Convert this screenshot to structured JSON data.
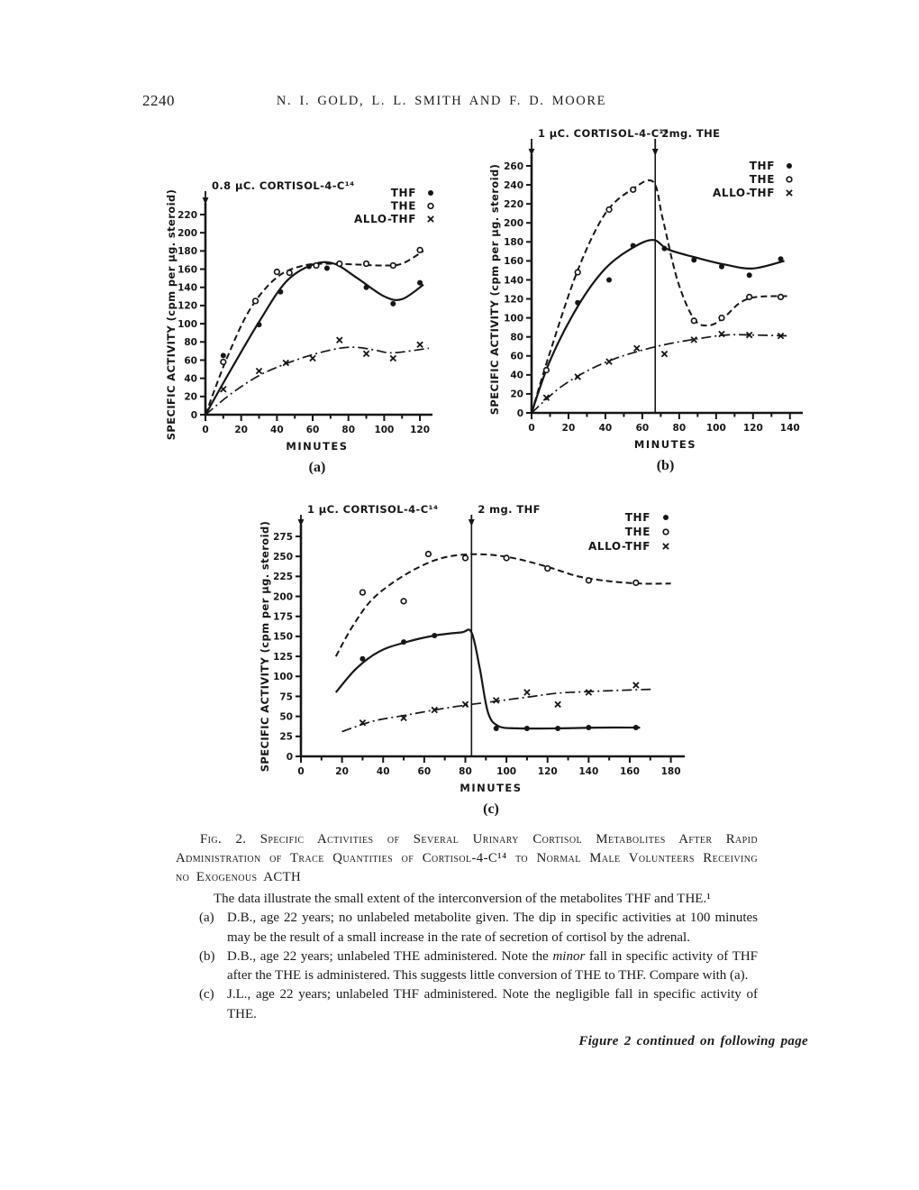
{
  "page": {
    "number": "2240",
    "running_head": "N. I. GOLD, L. L. SMITH AND F. D. MOORE"
  },
  "figure": {
    "caption_label": "Fig. 2.",
    "caption_text": "Specific Activities of Several Urinary Cortisol Metabolites After Rapid Administration of Trace Quantities of Cortisol-4-C¹⁴ to Normal Male Volunteers Receiving no Exogenous ACTH",
    "intro": "The data illustrate the small extent of the interconversion of the metabolites THF and THE.¹",
    "items": [
      {
        "label": "(a)",
        "text": "D.B., age 22 years; no unlabeled metabolite given.  The dip in specific activities at 100 minutes may be the result of a small increase in the rate of secretion of cortisol by the adrenal."
      },
      {
        "label": "(b)",
        "text_before": "D.B., age 22 years; unlabeled THE administered.  Note the ",
        "italic": "minor",
        "text_after": " fall in specific activity of THF after the THE is administered.  This suggests little conversion of THE to THF.  Compare with (a)."
      },
      {
        "label": "(c)",
        "text": "J.L., age 22 years; unlabeled THF administered.  Note the negligible fall in specific activity of THE."
      }
    ],
    "continuation": "Figure 2 continued on following page"
  },
  "chart_data": [
    {
      "id": "a",
      "type": "line",
      "sublabel": "(a)",
      "xlabel": "MINUTES",
      "ylabel": "SPECIFIC ACTIVITY (cpm per µg. steroid)",
      "xlim": [
        0,
        125
      ],
      "ylim": [
        0,
        220
      ],
      "xtick_max": 120,
      "xtick_step": 20,
      "xminor_step": 10,
      "ytick_step": 20,
      "grid": false,
      "legend_position": "top-right",
      "legend": [
        {
          "name": "THF",
          "marker": "dot"
        },
        {
          "name": "THE",
          "marker": "circle"
        },
        {
          "name": "ALLO-THF",
          "marker": "x"
        }
      ],
      "annotations": [
        {
          "text": "0.8 µC. CORTISOL-4-C¹⁴",
          "x": 0,
          "vline": false
        }
      ],
      "series": [
        {
          "name": "THF",
          "marker": "dot",
          "line": "solid",
          "points": [
            [
              10,
              65
            ],
            [
              30,
              99
            ],
            [
              42,
              135
            ],
            [
              58,
              163
            ],
            [
              68,
              161
            ],
            [
              90,
              140
            ],
            [
              105,
              122
            ],
            [
              120,
              145
            ]
          ],
          "curve": [
            [
              0,
              0
            ],
            [
              15,
              52
            ],
            [
              30,
              102
            ],
            [
              45,
              146
            ],
            [
              60,
              165
            ],
            [
              72,
              166
            ],
            [
              85,
              150
            ],
            [
              100,
              130
            ],
            [
              110,
              127
            ],
            [
              122,
              143
            ]
          ]
        },
        {
          "name": "THE",
          "marker": "circle",
          "line": "dashed",
          "points": [
            [
              10,
              58
            ],
            [
              28,
              125
            ],
            [
              40,
              157
            ],
            [
              47,
              156
            ],
            [
              62,
              164
            ],
            [
              75,
              166
            ],
            [
              90,
              166
            ],
            [
              105,
              164
            ],
            [
              120,
              181
            ]
          ],
          "curve": [
            [
              0,
              0
            ],
            [
              12,
              62
            ],
            [
              25,
              116
            ],
            [
              40,
              151
            ],
            [
              55,
              164
            ],
            [
              70,
              166
            ],
            [
              85,
              165
            ],
            [
              100,
              164
            ],
            [
              110,
              166
            ],
            [
              122,
              180
            ]
          ]
        },
        {
          "name": "ALLO-THF",
          "marker": "x",
          "line": "dashdot",
          "points": [
            [
              10,
              28
            ],
            [
              30,
              48
            ],
            [
              45,
              57
            ],
            [
              60,
              62
            ],
            [
              75,
              82
            ],
            [
              90,
              67
            ],
            [
              105,
              62
            ],
            [
              120,
              77
            ]
          ],
          "curve": [
            [
              0,
              0
            ],
            [
              15,
              24
            ],
            [
              30,
              43
            ],
            [
              45,
              56
            ],
            [
              60,
              66
            ],
            [
              75,
              73
            ],
            [
              85,
              74
            ],
            [
              95,
              71
            ],
            [
              105,
              68
            ],
            [
              125,
              73
            ]
          ]
        }
      ]
    },
    {
      "id": "b",
      "type": "line",
      "sublabel": "(b)",
      "xlabel": "MINUTES",
      "ylabel": "SPECIFIC ACTIVITY (cpm per µg. steroid)",
      "xlim": [
        0,
        145
      ],
      "ylim": [
        0,
        260
      ],
      "xtick_max": 140,
      "xtick_step": 20,
      "xminor_step": 10,
      "ytick_step": 20,
      "grid": false,
      "legend_position": "top-right",
      "legend": [
        {
          "name": "THF",
          "marker": "dot"
        },
        {
          "name": "THE",
          "marker": "circle"
        },
        {
          "name": "ALLO-THF",
          "marker": "x"
        }
      ],
      "annotations": [
        {
          "text": "1 µC. CORTISOL-4-C¹⁴",
          "x": 0,
          "vline": false
        },
        {
          "text": "2mg. THE",
          "x": 67,
          "vline": true
        }
      ],
      "series": [
        {
          "name": "THF",
          "marker": "dot",
          "line": "solid",
          "points": [
            [
              8,
              45
            ],
            [
              25,
              116
            ],
            [
              42,
              140
            ],
            [
              55,
              176
            ],
            [
              72,
              173
            ],
            [
              88,
              161
            ],
            [
              103,
              154
            ],
            [
              118,
              145
            ],
            [
              135,
              162
            ]
          ],
          "curve": [
            [
              0,
              0
            ],
            [
              10,
              55
            ],
            [
              25,
              112
            ],
            [
              40,
              152
            ],
            [
              55,
              174
            ],
            [
              66,
              182
            ],
            [
              74,
              172
            ],
            [
              90,
              163
            ],
            [
              105,
              156
            ],
            [
              120,
              152
            ],
            [
              137,
              160
            ]
          ]
        },
        {
          "name": "THE",
          "marker": "circle",
          "line": "dashed",
          "points": [
            [
              8,
              45
            ],
            [
              25,
              148
            ],
            [
              42,
              214
            ],
            [
              55,
              235
            ],
            [
              88,
              97
            ],
            [
              103,
              100
            ],
            [
              118,
              122
            ],
            [
              135,
              122
            ]
          ],
          "curve": [
            [
              0,
              0
            ],
            [
              10,
              64
            ],
            [
              25,
              150
            ],
            [
              40,
              210
            ],
            [
              55,
              236
            ],
            [
              66,
              243
            ],
            [
              71,
              205
            ],
            [
              79,
              140
            ],
            [
              88,
              99
            ],
            [
              96,
              92
            ],
            [
              104,
              100
            ],
            [
              113,
              116
            ],
            [
              122,
              122
            ],
            [
              140,
              123
            ]
          ]
        },
        {
          "name": "ALLO-THF",
          "marker": "x",
          "line": "dashdot",
          "points": [
            [
              8,
              16
            ],
            [
              25,
              38
            ],
            [
              42,
              54
            ],
            [
              57,
              68
            ],
            [
              72,
              62
            ],
            [
              88,
              77
            ],
            [
              103,
              83
            ],
            [
              118,
              82
            ],
            [
              135,
              81
            ]
          ],
          "curve": [
            [
              0,
              0
            ],
            [
              15,
              26
            ],
            [
              30,
              44
            ],
            [
              45,
              57
            ],
            [
              60,
              66
            ],
            [
              75,
              73
            ],
            [
              90,
              78
            ],
            [
              105,
              82
            ],
            [
              120,
              82
            ],
            [
              140,
              81
            ]
          ]
        }
      ]
    },
    {
      "id": "c",
      "type": "line",
      "sublabel": "(c)",
      "xlabel": "MINUTES",
      "ylabel": "SPECIFIC ACTIVITY (cpm per µg. steroid)",
      "xlim": [
        0,
        185
      ],
      "ylim": [
        0,
        275
      ],
      "xtick_max": 180,
      "xtick_step": 20,
      "xminor_step": 10,
      "ytick_step": 25,
      "grid": false,
      "legend_position": "top-right",
      "legend": [
        {
          "name": "THF",
          "marker": "dot"
        },
        {
          "name": "THE",
          "marker": "circle"
        },
        {
          "name": "ALLO-THF",
          "marker": "x"
        }
      ],
      "annotations": [
        {
          "text": "1 µC. CORTISOL-4-C¹⁴",
          "x": 0,
          "vline": false
        },
        {
          "text": "2 mg. THF",
          "x": 83,
          "vline": true
        }
      ],
      "series": [
        {
          "name": "THF",
          "marker": "dot",
          "line": "solid",
          "points": [
            [
              30,
              122
            ],
            [
              50,
              143
            ],
            [
              65,
              151
            ],
            [
              95,
              35
            ],
            [
              110,
              35
            ],
            [
              125,
              35
            ],
            [
              140,
              36
            ],
            [
              163,
              36
            ]
          ],
          "curve": [
            [
              17,
              80
            ],
            [
              27,
              110
            ],
            [
              38,
              131
            ],
            [
              50,
              142
            ],
            [
              65,
              151
            ],
            [
              78,
              155
            ],
            [
              83,
              155
            ],
            [
              87,
              110
            ],
            [
              91,
              55
            ],
            [
              96,
              38
            ],
            [
              105,
              35
            ],
            [
              125,
              35
            ],
            [
              145,
              36
            ],
            [
              165,
              36
            ]
          ]
        },
        {
          "name": "THE",
          "marker": "circle",
          "line": "dashed",
          "points": [
            [
              30,
              205
            ],
            [
              50,
              194
            ],
            [
              62,
              253
            ],
            [
              80,
              248
            ],
            [
              100,
              248
            ],
            [
              120,
              235
            ],
            [
              140,
              220
            ],
            [
              163,
              217
            ]
          ],
          "curve": [
            [
              17,
              125
            ],
            [
              25,
              162
            ],
            [
              35,
              197
            ],
            [
              50,
              226
            ],
            [
              65,
              245
            ],
            [
              78,
              252
            ],
            [
              92,
              252
            ],
            [
              105,
              247
            ],
            [
              120,
              237
            ],
            [
              135,
              225
            ],
            [
              150,
              219
            ],
            [
              165,
              216
            ],
            [
              180,
              216
            ]
          ]
        },
        {
          "name": "ALLO-THF",
          "marker": "x",
          "line": "dashdot",
          "points": [
            [
              30,
              42
            ],
            [
              50,
              48
            ],
            [
              65,
              58
            ],
            [
              80,
              65
            ],
            [
              95,
              70
            ],
            [
              110,
              80
            ],
            [
              125,
              65
            ],
            [
              140,
              80
            ],
            [
              163,
              89
            ]
          ],
          "curve": [
            [
              20,
              31
            ],
            [
              35,
              44
            ],
            [
              50,
              51
            ],
            [
              65,
              58
            ],
            [
              80,
              64
            ],
            [
              95,
              69
            ],
            [
              110,
              74
            ],
            [
              125,
              79
            ],
            [
              140,
              81
            ],
            [
              160,
              83
            ],
            [
              172,
              84
            ]
          ]
        }
      ]
    }
  ]
}
